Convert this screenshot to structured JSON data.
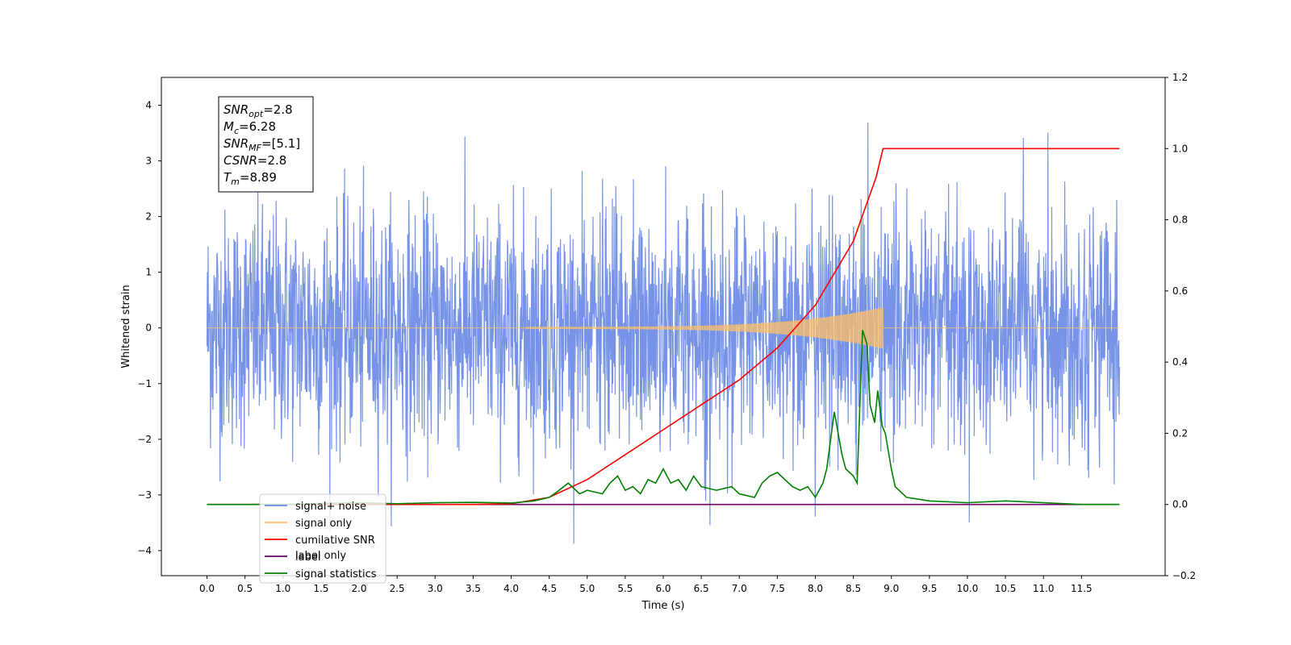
{
  "chart_data": {
    "type": "line",
    "xlabel": "Time (s)",
    "ylabel": "Whitened strain",
    "xlim": [
      -0.6,
      12.6
    ],
    "ylim": [
      -4.45,
      4.5
    ],
    "y2lim": [
      -0.2,
      1.2
    ],
    "x_ticks": [
      "0.0",
      "0.5",
      "1.0",
      "1.5",
      "2.0",
      "2.5",
      "3.0",
      "3.5",
      "4.0",
      "4.5",
      "5.0",
      "5.5",
      "6.0",
      "6.5",
      "7.0",
      "7.5",
      "8.0",
      "8.5",
      "9.0",
      "9.5",
      "10.0",
      "10.5",
      "11.0",
      "11.5"
    ],
    "y_ticks": [
      "4",
      "3",
      "2",
      "1",
      "0",
      "−1",
      "−2",
      "−3",
      "−4"
    ],
    "y2_ticks": [
      "1.2",
      "1.0",
      "0.8",
      "0.6",
      "0.4",
      "0.2",
      "0.0",
      "−0.2"
    ],
    "legend": {
      "position": "lower-left",
      "entries": [
        {
          "label": "signal+ noise",
          "color": "#6f8de6"
        },
        {
          "label": "signal only",
          "color": "#ffbf66"
        },
        {
          "label": "cumilative SNR",
          "color": "#ff0000"
        },
        {
          "label": "label",
          "color": "#6a006a"
        },
        {
          "label": "signal statistics",
          "color": "#008000"
        }
      ],
      "hidden_text": "label only"
    },
    "annotation": {
      "lines": [
        {
          "sym": "SNR",
          "sub": "opt",
          "rest": "=2.8"
        },
        {
          "sym": "M",
          "sub": "c",
          "rest": "=6.28"
        },
        {
          "sym": "SNR",
          "sub": "MF",
          "rest": "=[5.1]"
        },
        {
          "sym": "CSNR",
          "sub": "",
          "rest": "=2.8"
        },
        {
          "sym": "T",
          "sub": "m",
          "rest": "=8.89"
        }
      ]
    },
    "series": [
      {
        "name": "signal+ noise",
        "axis": "left",
        "color": "#6f8de6",
        "x_range": [
          0,
          12
        ],
        "envelope_peak": 4.1,
        "envelope_trough": -4.0
      },
      {
        "name": "signal only",
        "axis": "left",
        "color": "#ffbf66",
        "x_range": [
          0,
          12
        ],
        "chirp_start": 4.2,
        "merger_time": 8.89,
        "peak_amplitude": 0.35
      },
      {
        "name": "cumilative SNR",
        "axis": "right",
        "color": "#ff0000",
        "x": [
          0.0,
          2.0,
          3.5,
          4.0,
          4.5,
          5.0,
          5.5,
          6.0,
          6.5,
          7.0,
          7.5,
          8.0,
          8.5,
          8.8,
          8.89,
          12.0
        ],
        "values": [
          0.0,
          0.0,
          0.0,
          0.002,
          0.02,
          0.07,
          0.14,
          0.21,
          0.28,
          0.35,
          0.44,
          0.56,
          0.74,
          0.92,
          1.0,
          1.0
        ]
      },
      {
        "name": "label",
        "axis": "right",
        "color": "#6a006a",
        "x": [
          0.6,
          12.0
        ],
        "values": [
          0.0,
          0.0
        ]
      },
      {
        "name": "signal statistics",
        "axis": "right",
        "color": "#008000",
        "x": [
          0.0,
          0.5,
          1.0,
          1.5,
          2.0,
          2.5,
          3.0,
          3.5,
          4.0,
          4.3,
          4.5,
          4.6,
          4.75,
          4.9,
          5.0,
          5.2,
          5.3,
          5.4,
          5.5,
          5.6,
          5.7,
          5.8,
          5.9,
          6.0,
          6.1,
          6.2,
          6.3,
          6.4,
          6.5,
          6.7,
          6.9,
          7.0,
          7.2,
          7.3,
          7.4,
          7.5,
          7.6,
          7.7,
          7.8,
          7.9,
          8.0,
          8.1,
          8.15,
          8.25,
          8.35,
          8.4,
          8.5,
          8.55,
          8.62,
          8.68,
          8.72,
          8.78,
          8.82,
          8.88,
          8.92,
          9.0,
          9.05,
          9.2,
          9.5,
          10.0,
          10.5,
          11.0,
          11.5,
          12.0
        ],
        "values": [
          0.0,
          0.0,
          0.0,
          0.003,
          0.005,
          0.002,
          0.005,
          0.006,
          0.004,
          0.01,
          0.02,
          0.035,
          0.06,
          0.03,
          0.04,
          0.03,
          0.06,
          0.08,
          0.04,
          0.05,
          0.03,
          0.07,
          0.06,
          0.1,
          0.06,
          0.07,
          0.04,
          0.08,
          0.05,
          0.04,
          0.05,
          0.03,
          0.02,
          0.06,
          0.08,
          0.09,
          0.07,
          0.05,
          0.04,
          0.05,
          0.02,
          0.06,
          0.1,
          0.26,
          0.14,
          0.1,
          0.08,
          0.06,
          0.49,
          0.45,
          0.28,
          0.23,
          0.32,
          0.22,
          0.2,
          0.1,
          0.05,
          0.02,
          0.01,
          0.005,
          0.01,
          0.005,
          0.0,
          0.0
        ]
      }
    ]
  }
}
